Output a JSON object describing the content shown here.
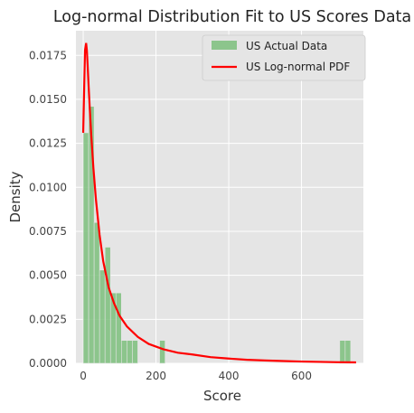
{
  "chart_data": {
    "type": "bar",
    "title": "Log-normal Distribution Fit to US Scores Data",
    "xlabel": "Score",
    "ylabel": "Density",
    "xlim": [
      -20,
      770
    ],
    "ylim": [
      0,
      0.0189
    ],
    "xticks": [
      0,
      200,
      400,
      600
    ],
    "yticks": [
      0.0,
      0.0025,
      0.005,
      0.0075,
      0.01,
      0.0125,
      0.015,
      0.0175
    ],
    "ytick_labels": [
      "0.0000",
      "0.0025",
      "0.0050",
      "0.0075",
      "0.0100",
      "0.0125",
      "0.0150",
      "0.0175"
    ],
    "grid": true,
    "legend_position": "upper-right",
    "colors": {
      "background": "#e5e5e5",
      "grid": "#ffffff",
      "bars": "#7dbf7d",
      "pdf": "#ff0000"
    },
    "series": [
      {
        "name": "US Actual Data",
        "kind": "histogram",
        "bin_width": 15,
        "bins": [
          {
            "start": 0,
            "end": 15,
            "density": 0.0131
          },
          {
            "start": 15,
            "end": 30,
            "density": 0.0146
          },
          {
            "start": 30,
            "end": 45,
            "density": 0.008
          },
          {
            "start": 45,
            "end": 60,
            "density": 0.0053
          },
          {
            "start": 60,
            "end": 75,
            "density": 0.0066
          },
          {
            "start": 75,
            "end": 90,
            "density": 0.004
          },
          {
            "start": 90,
            "end": 105,
            "density": 0.004
          },
          {
            "start": 105,
            "end": 120,
            "density": 0.0013
          },
          {
            "start": 120,
            "end": 135,
            "density": 0.0013
          },
          {
            "start": 135,
            "end": 150,
            "density": 0.0013
          },
          {
            "start": 210,
            "end": 225,
            "density": 0.0013
          },
          {
            "start": 705,
            "end": 720,
            "density": 0.0013
          },
          {
            "start": 720,
            "end": 735,
            "density": 0.0013
          }
        ]
      },
      {
        "name": "US Log-normal PDF",
        "kind": "line",
        "x": [
          0,
          3,
          5,
          8,
          10,
          12,
          15,
          18,
          22,
          28,
          35,
          45,
          55,
          70,
          85,
          100,
          120,
          150,
          180,
          220,
          260,
          300,
          350,
          400,
          450,
          500,
          550,
          600,
          650,
          700,
          750
        ],
        "y": [
          0.0131,
          0.016,
          0.0178,
          0.0182,
          0.0178,
          0.017,
          0.0157,
          0.0145,
          0.013,
          0.0111,
          0.0093,
          0.0073,
          0.0058,
          0.0043,
          0.0034,
          0.0027,
          0.0021,
          0.0015,
          0.0011,
          0.0008,
          0.0006,
          0.0005,
          0.00035,
          0.00027,
          0.0002,
          0.00016,
          0.00013,
          0.0001,
          8e-05,
          6e-05,
          5e-05
        ]
      }
    ]
  }
}
